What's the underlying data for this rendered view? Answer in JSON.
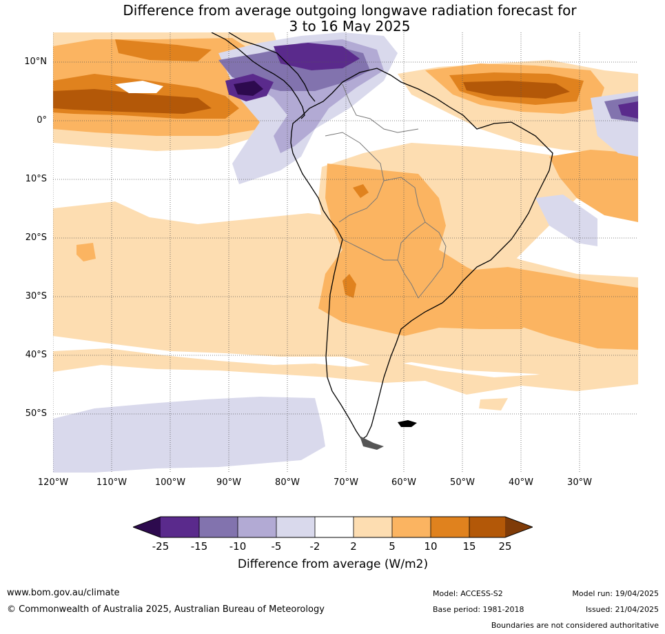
{
  "title_line1": "Difference from average outgoing longwave radiation forecast for",
  "title_line2": "3 to 16 May 2025",
  "lat_labels": [
    "10°N",
    "0°",
    "10°S",
    "20°S",
    "30°S",
    "40°S",
    "50°S"
  ],
  "lon_labels": [
    "120°W",
    "110°W",
    "100°W",
    "90°W",
    "80°W",
    "70°W",
    "60°W",
    "50°W",
    "40°W",
    "30°W"
  ],
  "colorbar": {
    "ticks": [
      "-25",
      "-15",
      "-10",
      "-5",
      "-2",
      "2",
      "5",
      "10",
      "15",
      "25"
    ],
    "label": "Difference from average (W/m2)",
    "colors": [
      "#2d0a4e",
      "#5a2a8c",
      "#8273ae",
      "#b2aad4",
      "#d9d9ec",
      "#ffffff",
      "#fdddb1",
      "#fbb461",
      "#e0821e",
      "#b35808",
      "#7f3b08"
    ]
  },
  "footer": {
    "url": "www.bom.gov.au/climate",
    "copyright": "© Commonwealth of Australia 2025, Australian Bureau of Meteorology",
    "model": "Model: ACCESS-S2",
    "base_period": "Base period: 1981-2018",
    "model_run": "Model run: 19/04/2025",
    "issued": "Issued: 21/04/2025",
    "disclaimer": "Boundaries are not considered authoritative"
  }
}
